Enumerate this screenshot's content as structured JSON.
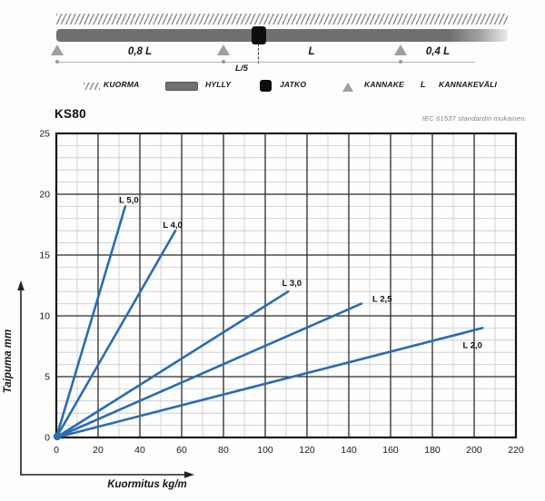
{
  "colors": {
    "series_blue": "#2b6cb0",
    "shelf_gray": "#6f6f6f",
    "support_gray": "#9e9e9e",
    "joint_black": "#0d0d0d"
  },
  "diagram": {
    "dimensions": {
      "span_left": "0,8 L",
      "joint_offset": "L/5",
      "span_mid": "L",
      "span_right": "0,4 L"
    },
    "legend": {
      "items": [
        {
          "icon": "hatch-load-icon",
          "label": "KUORMA"
        },
        {
          "icon": "shelf-bar-icon",
          "label": "HYLLY"
        },
        {
          "icon": "joint-square-icon",
          "label": "JATKO"
        },
        {
          "icon": "support-triangle-icon",
          "label": "KANNAKE"
        },
        {
          "icon": "letter-l-symbol",
          "symbol": "L",
          "label": "KANNAKEVÄLI"
        }
      ]
    }
  },
  "chart_data": {
    "type": "line",
    "title": "KS80",
    "note": "IEC 61537 standardin mukainen.",
    "xlabel": "Kuormitus kg/m",
    "ylabel": "Taipuma mm",
    "xlim": [
      0,
      220
    ],
    "ylim": [
      0,
      25
    ],
    "x_major_ticks": [
      0,
      20,
      40,
      60,
      80,
      100,
      120,
      140,
      160,
      180,
      200,
      220
    ],
    "y_major_ticks": [
      0,
      5,
      10,
      15,
      20,
      25
    ],
    "x_major_step": 20,
    "x_minor_step": 10,
    "y_major_step": 5,
    "y_minor_step": 1,
    "grid": true,
    "legend_position": "inline-labels",
    "line_color": "#2b6cb0",
    "series": [
      {
        "name": "L 5,0",
        "x": [
          0,
          33
        ],
        "y": [
          0,
          19
        ]
      },
      {
        "name": "L 4,0",
        "x": [
          0,
          57
        ],
        "y": [
          0,
          17
        ]
      },
      {
        "name": "L 3,0",
        "x": [
          0,
          111
        ],
        "y": [
          0,
          12
        ]
      },
      {
        "name": "L 2,5",
        "x": [
          0,
          146
        ],
        "y": [
          0,
          11
        ]
      },
      {
        "name": "L 2,0",
        "x": [
          0,
          204
        ],
        "y": [
          0,
          9
        ]
      }
    ]
  }
}
